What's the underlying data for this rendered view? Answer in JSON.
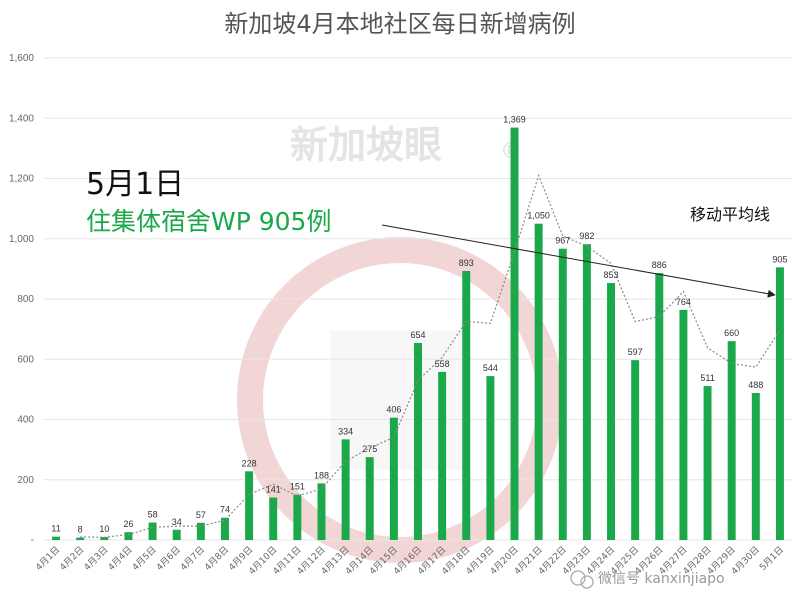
{
  "colors": {
    "bar": "#1aa84a",
    "accent_text": "#1aa84a",
    "watermark": "#e8b5b5"
  },
  "watermark": {
    "brand": "新加坡眼",
    "mark": "®"
  },
  "wechat_watermark": "微信号 kanxinjiapo",
  "annotation": {
    "date": "5月1日",
    "subtitle": "住集体宿舍WP 905例",
    "moving_avg_label": "移动平均线"
  },
  "chart_data": {
    "type": "bar",
    "title": "新加坡4月本地社区每日新增病例",
    "xlabel": "",
    "ylabel": "",
    "ylim": [
      0,
      1600
    ],
    "yticks": [
      0,
      200,
      400,
      600,
      800,
      1000,
      1200,
      1400,
      1600
    ],
    "ytick_labels": [
      "-",
      "200",
      "400",
      "600",
      "800",
      "1,000",
      "1,200",
      "1,400",
      "1,600"
    ],
    "grid": true,
    "categories": [
      "4月1日",
      "4月2日",
      "4月3日",
      "4月4日",
      "4月5日",
      "4月6日",
      "4月7日",
      "4月8日",
      "4月9日",
      "4月10日",
      "4月11日",
      "4月12日",
      "4月13日",
      "4月14日",
      "4月15日",
      "4月16日",
      "4月17日",
      "4月18日",
      "4月19日",
      "4月20日",
      "4月21日",
      "4月22日",
      "4月23日",
      "4月24日",
      "4月25日",
      "4月26日",
      "4月27日",
      "4月28日",
      "4月29日",
      "4月30日",
      "5月1日"
    ],
    "values": [
      11,
      8,
      10,
      26,
      58,
      34,
      57,
      74,
      228,
      141,
      151,
      188,
      334,
      275,
      406,
      654,
      558,
      893,
      544,
      1369,
      1050,
      967,
      982,
      853,
      597,
      886,
      764,
      511,
      660,
      488,
      905
    ],
    "value_labels": [
      "11",
      "8",
      "10",
      "26",
      "58",
      "34",
      "57",
      "74",
      "228",
      "141",
      "151",
      "188",
      "334",
      "275",
      "406",
      "654",
      "558",
      "893",
      "544",
      "1,369",
      "1,050",
      "967",
      "982",
      "853",
      "597",
      "886",
      "764",
      "511",
      "660",
      "488",
      "905"
    ],
    "moving_average": [
      null,
      10,
      9,
      18,
      42,
      46,
      46,
      66,
      151,
      185,
      146,
      170,
      261,
      305,
      341,
      530,
      606,
      726,
      719,
      957,
      1210,
      1009,
      975,
      918,
      725,
      742,
      825,
      638,
      586,
      574,
      697
    ]
  }
}
